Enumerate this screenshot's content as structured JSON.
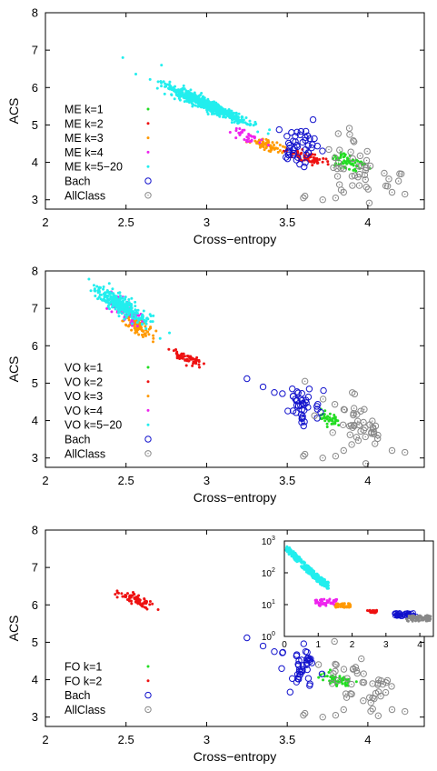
{
  "colors": {
    "k1": "#22dd22",
    "k2": "#ee1111",
    "k3": "#ff9900",
    "k4": "#ee22ee",
    "k5_20": "#22eeee",
    "bach": "#1111cc",
    "allclass": "#888888"
  },
  "chart_data": [
    {
      "type": "scatter",
      "panel": "ME",
      "xlabel": "Cross−entropy",
      "ylabel": "ACS",
      "xlim": [
        2,
        4.35
      ],
      "ylim": [
        2.75,
        8
      ],
      "xticks": [
        2,
        2.5,
        3,
        3.5,
        4
      ],
      "xticklabels": [
        "2",
        "2.5",
        "3",
        "3.5",
        "4"
      ],
      "yticks": [
        3,
        4,
        5,
        6,
        7,
        8
      ],
      "yticklabels": [
        "3",
        "4",
        "5",
        "6",
        "7",
        "8"
      ],
      "legend_position": "left",
      "series": [
        {
          "name": "ME k=1",
          "color_key": "k1",
          "marker": "dot",
          "clusters": [
            {
              "cx": 3.88,
              "cy": 4.0,
              "sx": 0.06,
              "sy": 0.11,
              "n": 70,
              "slope": -1.2
            }
          ]
        },
        {
          "name": "ME k=2",
          "color_key": "k2",
          "marker": "dot",
          "clusters": [
            {
              "cx": 3.63,
              "cy": 4.12,
              "sx": 0.06,
              "sy": 0.08,
              "n": 70,
              "slope": -1.4
            }
          ]
        },
        {
          "name": "ME k=3",
          "color_key": "k3",
          "marker": "dot",
          "clusters": [
            {
              "cx": 3.38,
              "cy": 4.45,
              "sx": 0.06,
              "sy": 0.08,
              "n": 60,
              "slope": -1.4
            }
          ]
        },
        {
          "name": "ME k=4",
          "color_key": "k4",
          "marker": "dot",
          "clusters": [
            {
              "cx": 3.24,
              "cy": 4.72,
              "sx": 0.05,
              "sy": 0.08,
              "n": 35,
              "slope": -1.4
            }
          ]
        },
        {
          "name": "ME k=5−20",
          "color_key": "k5_20",
          "marker": "dot",
          "clusters": [
            {
              "cx": 3.0,
              "cy": 5.55,
              "sx": 0.13,
              "sy": 0.08,
              "n": 650,
              "slope": -1.9
            }
          ],
          "points": [
            [
              2.48,
              6.8
            ],
            [
              2.72,
              6.6
            ]
          ]
        },
        {
          "name": "Bach",
          "color_key": "bach",
          "marker": "circle",
          "clusters": [
            {
              "cx": 3.6,
              "cy": 4.45,
              "sx": 0.06,
              "sy": 0.28,
              "n": 45,
              "slope": 0
            }
          ]
        },
        {
          "name": "AllClass",
          "color_key": "allclass",
          "marker": "circle-dot",
          "clusters": [
            {
              "cx": 3.95,
              "cy": 3.9,
              "sx": 0.11,
              "sy": 0.35,
              "n": 45,
              "slope": -1.2
            }
          ],
          "points": [
            [
              3.6,
              3.05
            ],
            [
              3.61,
              3.1
            ],
            [
              3.8,
              3.05
            ],
            [
              3.85,
              3.2
            ],
            [
              3.72,
              3.0
            ],
            [
              4.15,
              3.2
            ],
            [
              4.23,
              3.15
            ]
          ]
        }
      ]
    },
    {
      "type": "scatter",
      "panel": "VO",
      "xlabel": "Cross−entropy",
      "ylabel": "ACS",
      "xlim": [
        2,
        4.35
      ],
      "ylim": [
        2.75,
        8
      ],
      "xticks": [
        2,
        2.5,
        3,
        3.5,
        4
      ],
      "xticklabels": [
        "2",
        "2.5",
        "3",
        "3.5",
        "4"
      ],
      "yticks": [
        3,
        4,
        5,
        6,
        7,
        8
      ],
      "yticklabels": [
        "3",
        "4",
        "5",
        "6",
        "7",
        "8"
      ],
      "legend_position": "left",
      "series": [
        {
          "name": "VO k=1",
          "color_key": "k1",
          "marker": "dot",
          "clusters": [
            {
              "cx": 3.76,
              "cy": 4.05,
              "sx": 0.04,
              "sy": 0.08,
              "n": 40,
              "slope": -1.0
            }
          ]
        },
        {
          "name": "VO k=2",
          "color_key": "k2",
          "marker": "dot",
          "clusters": [
            {
              "cx": 2.88,
              "cy": 5.65,
              "sx": 0.05,
              "sy": 0.06,
              "n": 60,
              "slope": -1.6
            }
          ]
        },
        {
          "name": "VO k=3",
          "color_key": "k3",
          "marker": "dot",
          "clusters": [
            {
              "cx": 2.57,
              "cy": 6.55,
              "sx": 0.04,
              "sy": 0.12,
              "n": 90,
              "slope": -2.5
            }
          ]
        },
        {
          "name": "VO k=4",
          "color_key": "k4",
          "marker": "dot",
          "clusters": [
            {
              "cx": 2.5,
              "cy": 6.9,
              "sx": 0.05,
              "sy": 0.13,
              "n": 60,
              "slope": -2.5
            }
          ]
        },
        {
          "name": "VO k=5−20",
          "color_key": "k5_20",
          "marker": "dot",
          "clusters": [
            {
              "cx": 2.46,
              "cy": 7.1,
              "sx": 0.08,
              "sy": 0.12,
              "n": 300,
              "slope": -2.5
            }
          ],
          "points": [
            [
              2.27,
              7.78
            ]
          ]
        },
        {
          "name": "Bach",
          "color_key": "bach",
          "marker": "circle",
          "clusters": [
            {
              "cx": 3.6,
              "cy": 4.35,
              "sx": 0.05,
              "sy": 0.28,
              "n": 40,
              "slope": 0
            }
          ],
          "points": [
            [
              3.25,
              5.12
            ],
            [
              3.35,
              4.9
            ],
            [
              3.42,
              4.75
            ],
            [
              3.47,
              4.72
            ]
          ]
        },
        {
          "name": "AllClass",
          "color_key": "allclass",
          "marker": "circle-dot",
          "clusters": [
            {
              "cx": 3.95,
              "cy": 3.9,
              "sx": 0.11,
              "sy": 0.35,
              "n": 45,
              "slope": -1.2
            }
          ],
          "points": [
            [
              3.6,
              3.05
            ],
            [
              3.61,
              3.1
            ],
            [
              3.8,
              3.05
            ],
            [
              3.85,
              3.2
            ],
            [
              3.72,
              3.0
            ],
            [
              4.15,
              3.2
            ],
            [
              4.23,
              3.15
            ]
          ]
        }
      ]
    },
    {
      "type": "scatter",
      "panel": "FO",
      "xlabel": "Cross−entropy",
      "ylabel": "ACS",
      "xlim": [
        2,
        4.35
      ],
      "ylim": [
        2.75,
        8
      ],
      "xticks": [
        2,
        2.5,
        3,
        3.5,
        4
      ],
      "xticklabels": [
        "2",
        "2.5",
        "3",
        "3.5",
        "4"
      ],
      "yticks": [
        3,
        4,
        5,
        6,
        7,
        8
      ],
      "yticklabels": [
        "3",
        "4",
        "5",
        "6",
        "7",
        "8"
      ],
      "legend_position": "bottom-left",
      "series": [
        {
          "name": "FO k=1",
          "color_key": "k1",
          "marker": "dot",
          "clusters": [
            {
              "cx": 3.8,
              "cy": 4.0,
              "sx": 0.05,
              "sy": 0.08,
              "n": 60,
              "slope": -1.0
            }
          ]
        },
        {
          "name": "FO k=2",
          "color_key": "k2",
          "marker": "dot",
          "clusters": [
            {
              "cx": 2.57,
              "cy": 6.12,
              "sx": 0.05,
              "sy": 0.08,
              "n": 80,
              "slope": -1.8
            }
          ]
        },
        {
          "name": "Bach",
          "color_key": "bach",
          "marker": "circle",
          "clusters": [
            {
              "cx": 3.6,
              "cy": 4.35,
              "sx": 0.05,
              "sy": 0.28,
              "n": 40,
              "slope": 0
            }
          ],
          "points": [
            [
              3.25,
              5.12
            ],
            [
              3.35,
              4.9
            ],
            [
              3.42,
              4.75
            ],
            [
              3.47,
              4.72
            ]
          ]
        },
        {
          "name": "AllClass",
          "color_key": "allclass",
          "marker": "circle-dot",
          "clusters": [
            {
              "cx": 3.95,
              "cy": 3.9,
              "sx": 0.11,
              "sy": 0.35,
              "n": 45,
              "slope": -1.2
            }
          ],
          "points": [
            [
              3.6,
              3.05
            ],
            [
              3.61,
              3.1
            ],
            [
              3.8,
              3.05
            ],
            [
              3.85,
              3.2
            ],
            [
              3.72,
              3.0
            ],
            [
              4.15,
              3.2
            ],
            [
              4.23,
              3.15
            ]
          ]
        }
      ],
      "inset": {
        "type": "scatter",
        "xlim": [
          0,
          4.4
        ],
        "ylim": [
          1,
          1000
        ],
        "yscale": "log",
        "xticks": [
          0,
          1,
          2,
          3,
          4
        ],
        "xticklabels": [
          "0",
          "1",
          "2",
          "3",
          "4"
        ],
        "yticks": [
          1,
          10,
          100,
          1000
        ],
        "yticklabels": [
          "10",
          "10",
          "10",
          "10"
        ],
        "yticksup": [
          "0",
          "1",
          "2",
          "3"
        ],
        "series": [
          {
            "color_key": "k5_20",
            "kind": "decay",
            "a": 700,
            "b": 2.6,
            "c": 14,
            "xmin": 0.02,
            "xmax": 1.3,
            "n": 260,
            "spread": 0.25
          },
          {
            "color_key": "k4",
            "kind": "band",
            "xmin": 0.9,
            "xmax": 1.55,
            "ymin": 9,
            "ymax": 15,
            "n": 50
          },
          {
            "color_key": "k3",
            "kind": "band",
            "xmin": 1.5,
            "xmax": 1.95,
            "ymin": 8,
            "ymax": 11,
            "n": 40
          },
          {
            "color_key": "k2",
            "kind": "band",
            "xmin": 2.45,
            "xmax": 2.75,
            "ymin": 5.5,
            "ymax": 6.7,
            "n": 30
          },
          {
            "color_key": "bach",
            "kind": "band",
            "xmin": 3.25,
            "xmax": 3.9,
            "ymin": 4.2,
            "ymax": 5.6,
            "n": 45,
            "marker": "circle"
          },
          {
            "color_key": "allclass",
            "kind": "band",
            "xmin": 3.6,
            "xmax": 4.35,
            "ymin": 3.0,
            "ymax": 4.6,
            "n": 90
          }
        ]
      }
    }
  ]
}
